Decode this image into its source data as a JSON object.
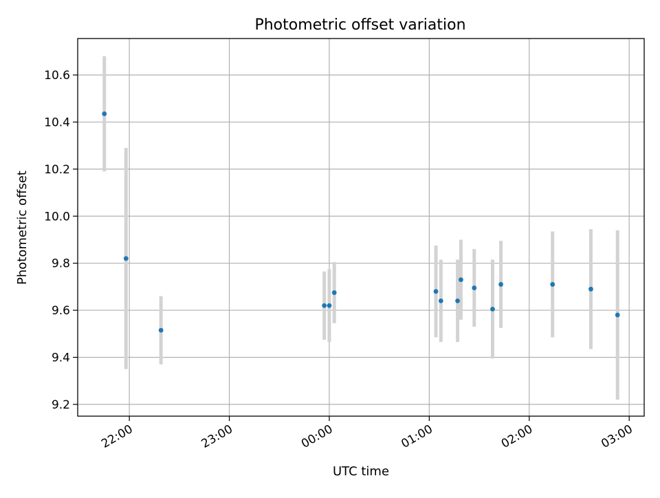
{
  "chart_data": {
    "type": "scatter",
    "title": "Photometric offset variation",
    "xlabel": "UTC time",
    "ylabel": "Photometric offset",
    "x_axis_type": "time",
    "xlim": [
      "21:29",
      "03:09"
    ],
    "ylim": [
      9.15,
      10.755
    ],
    "grid": true,
    "x_ticks": [
      "22:00",
      "23:00",
      "00:00",
      "01:00",
      "02:00",
      "03:00"
    ],
    "y_ticks": [
      "9.2",
      "9.4",
      "9.6",
      "9.8",
      "10.0",
      "10.2",
      "10.4",
      "10.6"
    ],
    "series": [
      {
        "x": [
          "21:45",
          "21:58",
          "22:19",
          "23:57",
          "00:00",
          "00:03",
          "01:04",
          "01:07",
          "01:17",
          "01:19",
          "01:27",
          "01:38",
          "01:43",
          "02:14",
          "02:37",
          "02:53"
        ],
        "y": [
          10.435,
          9.82,
          9.515,
          9.62,
          9.62,
          9.675,
          9.68,
          9.64,
          9.64,
          9.73,
          9.695,
          9.605,
          9.71,
          9.71,
          9.69,
          9.58
        ],
        "yerr": [
          0.245,
          0.47,
          0.145,
          0.145,
          0.155,
          0.13,
          0.195,
          0.175,
          0.175,
          0.17,
          0.165,
          0.21,
          0.185,
          0.225,
          0.255,
          0.36
        ]
      }
    ],
    "colors": {
      "marker": "#1f77b4",
      "errorbar": "#d3d3d3",
      "grid": "#b0b0b0"
    }
  }
}
